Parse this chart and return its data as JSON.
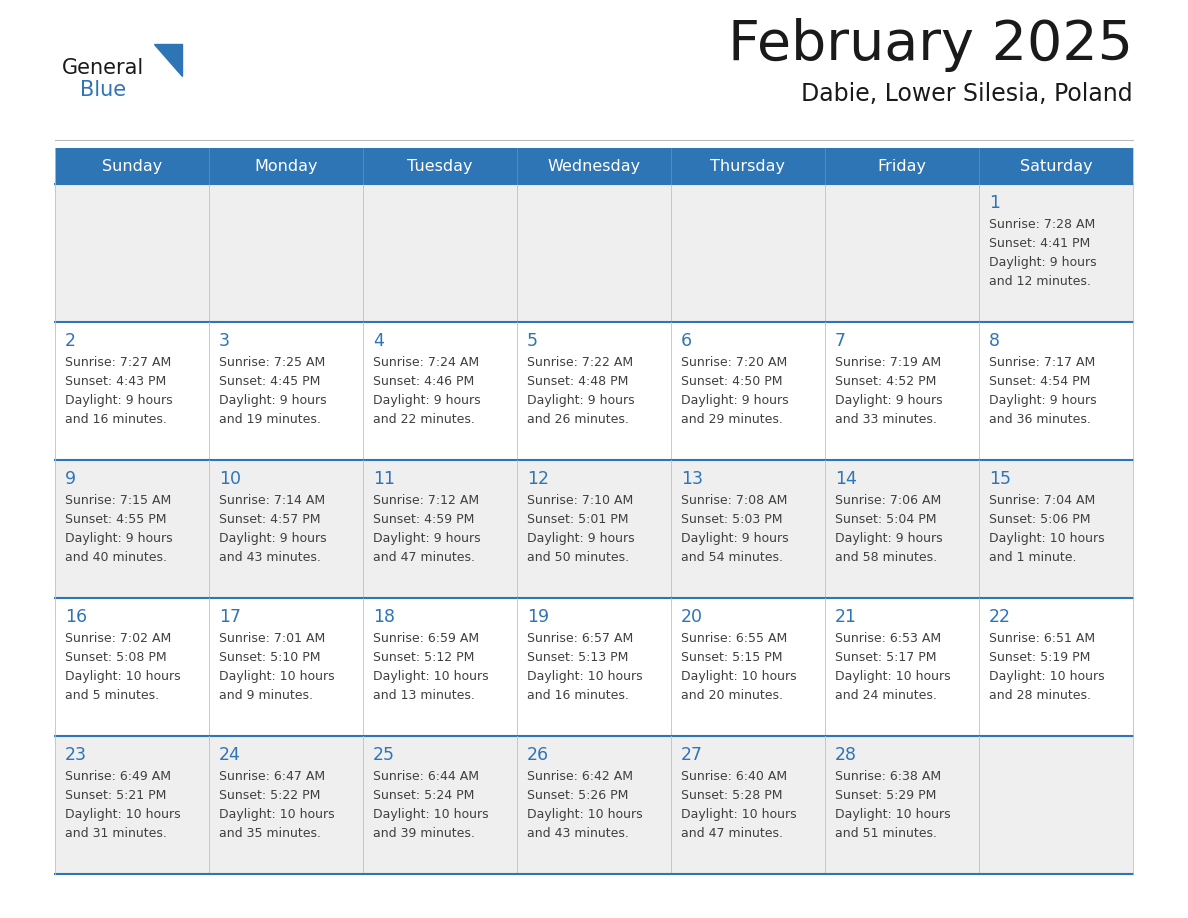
{
  "title": "February 2025",
  "subtitle": "Dabie, Lower Silesia, Poland",
  "header_bg": "#2E75B6",
  "header_text_color": "#FFFFFF",
  "cell_bg_odd": "#EFEFEF",
  "cell_bg_even": "#FFFFFF",
  "day_number_color": "#2E75B6",
  "text_color": "#404040",
  "border_color": "#2E75B6",
  "grid_color": "#C0C0C0",
  "days_of_week": [
    "Sunday",
    "Monday",
    "Tuesday",
    "Wednesday",
    "Thursday",
    "Friday",
    "Saturday"
  ],
  "calendar_data": [
    [
      null,
      null,
      null,
      null,
      null,
      null,
      {
        "day": 1,
        "sunrise": "7:28 AM",
        "sunset": "4:41 PM",
        "daylight": "9 hours and 12 minutes."
      }
    ],
    [
      {
        "day": 2,
        "sunrise": "7:27 AM",
        "sunset": "4:43 PM",
        "daylight": "9 hours and 16 minutes."
      },
      {
        "day": 3,
        "sunrise": "7:25 AM",
        "sunset": "4:45 PM",
        "daylight": "9 hours and 19 minutes."
      },
      {
        "day": 4,
        "sunrise": "7:24 AM",
        "sunset": "4:46 PM",
        "daylight": "9 hours and 22 minutes."
      },
      {
        "day": 5,
        "sunrise": "7:22 AM",
        "sunset": "4:48 PM",
        "daylight": "9 hours and 26 minutes."
      },
      {
        "day": 6,
        "sunrise": "7:20 AM",
        "sunset": "4:50 PM",
        "daylight": "9 hours and 29 minutes."
      },
      {
        "day": 7,
        "sunrise": "7:19 AM",
        "sunset": "4:52 PM",
        "daylight": "9 hours and 33 minutes."
      },
      {
        "day": 8,
        "sunrise": "7:17 AM",
        "sunset": "4:54 PM",
        "daylight": "9 hours and 36 minutes."
      }
    ],
    [
      {
        "day": 9,
        "sunrise": "7:15 AM",
        "sunset": "4:55 PM",
        "daylight": "9 hours and 40 minutes."
      },
      {
        "day": 10,
        "sunrise": "7:14 AM",
        "sunset": "4:57 PM",
        "daylight": "9 hours and 43 minutes."
      },
      {
        "day": 11,
        "sunrise": "7:12 AM",
        "sunset": "4:59 PM",
        "daylight": "9 hours and 47 minutes."
      },
      {
        "day": 12,
        "sunrise": "7:10 AM",
        "sunset": "5:01 PM",
        "daylight": "9 hours and 50 minutes."
      },
      {
        "day": 13,
        "sunrise": "7:08 AM",
        "sunset": "5:03 PM",
        "daylight": "9 hours and 54 minutes."
      },
      {
        "day": 14,
        "sunrise": "7:06 AM",
        "sunset": "5:04 PM",
        "daylight": "9 hours and 58 minutes."
      },
      {
        "day": 15,
        "sunrise": "7:04 AM",
        "sunset": "5:06 PM",
        "daylight": "10 hours and 1 minute."
      }
    ],
    [
      {
        "day": 16,
        "sunrise": "7:02 AM",
        "sunset": "5:08 PM",
        "daylight": "10 hours and 5 minutes."
      },
      {
        "day": 17,
        "sunrise": "7:01 AM",
        "sunset": "5:10 PM",
        "daylight": "10 hours and 9 minutes."
      },
      {
        "day": 18,
        "sunrise": "6:59 AM",
        "sunset": "5:12 PM",
        "daylight": "10 hours and 13 minutes."
      },
      {
        "day": 19,
        "sunrise": "6:57 AM",
        "sunset": "5:13 PM",
        "daylight": "10 hours and 16 minutes."
      },
      {
        "day": 20,
        "sunrise": "6:55 AM",
        "sunset": "5:15 PM",
        "daylight": "10 hours and 20 minutes."
      },
      {
        "day": 21,
        "sunrise": "6:53 AM",
        "sunset": "5:17 PM",
        "daylight": "10 hours and 24 minutes."
      },
      {
        "day": 22,
        "sunrise": "6:51 AM",
        "sunset": "5:19 PM",
        "daylight": "10 hours and 28 minutes."
      }
    ],
    [
      {
        "day": 23,
        "sunrise": "6:49 AM",
        "sunset": "5:21 PM",
        "daylight": "10 hours and 31 minutes."
      },
      {
        "day": 24,
        "sunrise": "6:47 AM",
        "sunset": "5:22 PM",
        "daylight": "10 hours and 35 minutes."
      },
      {
        "day": 25,
        "sunrise": "6:44 AM",
        "sunset": "5:24 PM",
        "daylight": "10 hours and 39 minutes."
      },
      {
        "day": 26,
        "sunrise": "6:42 AM",
        "sunset": "5:26 PM",
        "daylight": "10 hours and 43 minutes."
      },
      {
        "day": 27,
        "sunrise": "6:40 AM",
        "sunset": "5:28 PM",
        "daylight": "10 hours and 47 minutes."
      },
      {
        "day": 28,
        "sunrise": "6:38 AM",
        "sunset": "5:29 PM",
        "daylight": "10 hours and 51 minutes."
      },
      null
    ]
  ],
  "logo_general_color": "#1a1a1a",
  "logo_blue_color": "#2E75B6",
  "logo_triangle_color": "#2E75B6",
  "title_color": "#1a1a1a",
  "subtitle_color": "#1a1a1a"
}
